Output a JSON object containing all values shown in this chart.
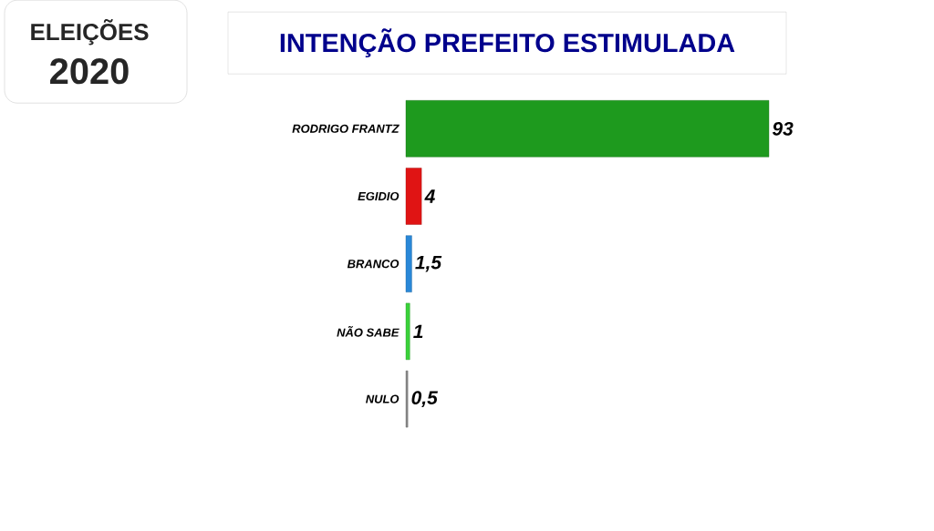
{
  "chart_data": {
    "type": "bar",
    "orientation": "horizontal",
    "title": "INTENÇÃO PREFEITO ESTIMULADA",
    "annotations": [
      "ELEIÇÕES",
      "2020"
    ],
    "categories": [
      "RODRIGO FRANTZ",
      "EGIDIO",
      "BRANCO",
      "NÃO SABE",
      "NULO"
    ],
    "values": [
      93,
      4,
      1.5,
      1,
      0.5
    ],
    "value_labels": [
      "93",
      "4",
      "1,5",
      "1",
      "0,5"
    ],
    "colors": [
      "#1e9a1e",
      "#e01414",
      "#2a88d8",
      "#3ad23a",
      "#8a8a8a"
    ]
  }
}
